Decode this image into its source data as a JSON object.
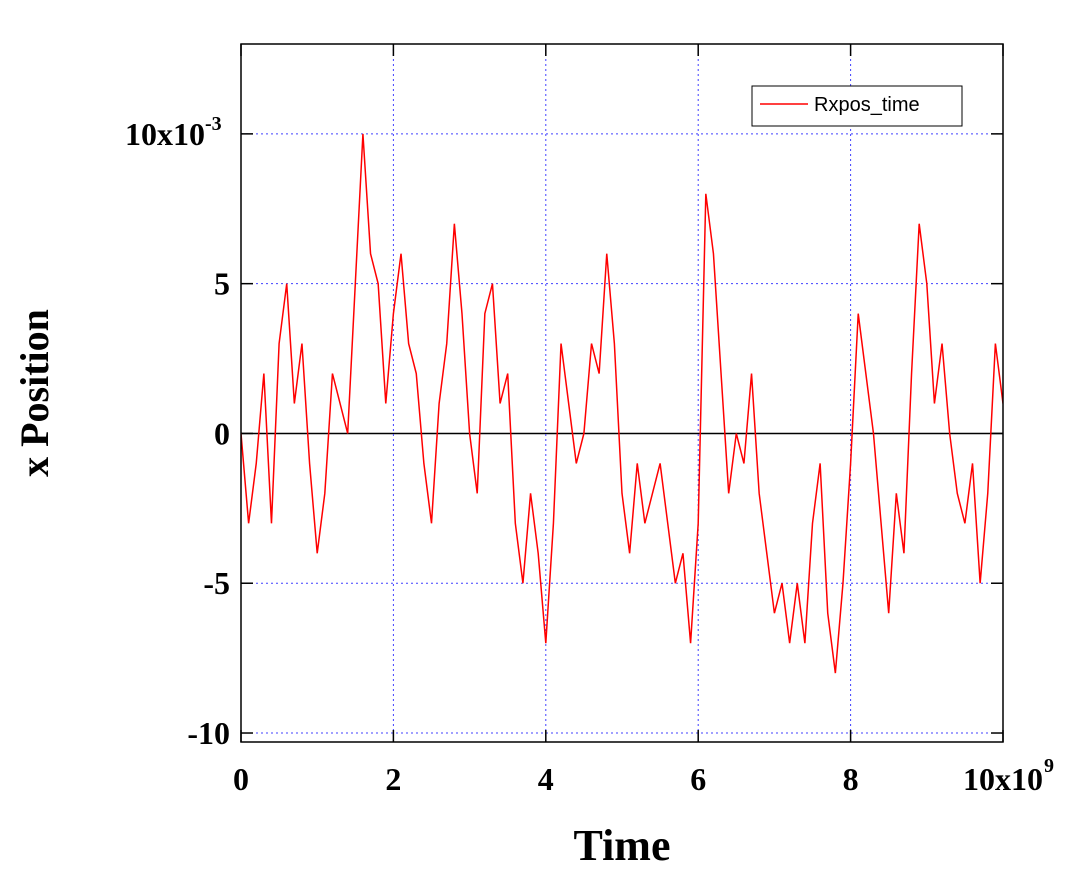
{
  "chart_data": {
    "type": "line",
    "xlabel": "Time",
    "ylabel": "x Position",
    "x": [
      0,
      100000000.0,
      200000000.0,
      300000000.0,
      400000000.0,
      500000000.0,
      600000000.0,
      700000000.0,
      800000000.0,
      900000000.0,
      1000000000.0,
      1100000000.0,
      1200000000.0,
      1300000000.0,
      1400000000.0,
      1500000000.0,
      1600000000.0,
      1700000000.0,
      1800000000.0,
      1900000000.0,
      2000000000.0,
      2100000000.0,
      2200000000.0,
      2300000000.0,
      2400000000.0,
      2500000000.0,
      2600000000.0,
      2700000000.0,
      2800000000.0,
      2900000000.0,
      3000000000.0,
      3100000000.0,
      3200000000.0,
      3300000000.0,
      3400000000.0,
      3500000000.0,
      3600000000.0,
      3700000000.0,
      3800000000.0,
      3900000000.0,
      4000000000.0,
      4100000000.0,
      4200000000.0,
      4300000000.0,
      4400000000.0,
      4500000000.0,
      4600000000.0,
      4700000000.0,
      4800000000.0,
      4900000000.0,
      5000000000.0,
      5100000000.0,
      5200000000.0,
      5300000000.0,
      5400000000.0,
      5500000000.0,
      5600000000.0,
      5700000000.0,
      5800000000.0,
      5900000000.0,
      6000000000.0,
      6100000000.0,
      6200000000.0,
      6300000000.0,
      6400000000.0,
      6500000000.0,
      6600000000.0,
      6700000000.0,
      6800000000.0,
      6900000000.0,
      7000000000.0,
      7100000000.0,
      7200000000.0,
      7300000000.0,
      7400000000.0,
      7500000000.0,
      7600000000.0,
      7700000000.0,
      7800000000.0,
      7900000000.0,
      8000000000.0,
      8100000000.0,
      8200000000.0,
      8300000000.0,
      8400000000.0,
      8500000000.0,
      8600000000.0,
      8700000000.0,
      8800000000.0,
      8900000000.0,
      9000000000.0,
      9100000000.0,
      9200000000.0,
      9300000000.0,
      9400000000.0,
      9500000000.0,
      9600000000.0,
      9700000000.0,
      9800000000.0,
      9900000000.0,
      10000000000.0
    ],
    "series": [
      {
        "name": "Rxpos_time",
        "color": "#ff0000",
        "values": [
          0,
          -0.003,
          -0.001,
          0.002,
          -0.003,
          0.003,
          0.005,
          0.001,
          0.003,
          -0.001,
          -0.004,
          -0.002,
          0.002,
          0.001,
          0,
          0.005,
          0.01,
          0.006,
          0.005,
          0.001,
          0.004,
          0.006,
          0.003,
          0.002,
          -0.001,
          -0.003,
          0.001,
          0.003,
          0.007,
          0.004,
          0,
          -0.002,
          0.004,
          0.005,
          0.001,
          0.002,
          -0.003,
          -0.005,
          -0.002,
          -0.004,
          -0.007,
          -0.003,
          0.003,
          0.001,
          -0.001,
          0,
          0.003,
          0.002,
          0.006,
          0.003,
          -0.002,
          -0.004,
          -0.001,
          -0.003,
          -0.002,
          -0.001,
          -0.003,
          -0.005,
          -0.004,
          -0.007,
          -0.003,
          0.008,
          0.006,
          0.002,
          -0.002,
          0,
          -0.001,
          0.002,
          -0.002,
          -0.004,
          -0.006,
          -0.005,
          -0.007,
          -0.005,
          -0.007,
          -0.003,
          -0.001,
          -0.006,
          -0.008,
          -0.005,
          -0.001,
          0.004,
          0.002,
          0,
          -0.003,
          -0.006,
          -0.002,
          -0.004,
          0.002,
          0.007,
          0.005,
          0.001,
          0.003,
          0,
          -0.002,
          -0.003,
          -0.001,
          -0.005,
          -0.002,
          0.003,
          0.001
        ]
      }
    ],
    "xlim": [
      0,
      10000000000.0
    ],
    "xticks": [
      0,
      {
        "value": 2000000000.0,
        "label": "2"
      },
      {
        "value": 4000000000.0,
        "label": "4"
      },
      {
        "value": 6000000000.0,
        "label": "6"
      },
      {
        "value": 8000000000.0,
        "label": "8"
      },
      {
        "value": 10000000000.0,
        "label": "10x10"
      }
    ],
    "xticks_exponent": "9",
    "ylim": [
      -0.0103,
      0.013
    ],
    "yticks": [
      {
        "value": -0.01,
        "label": "-10"
      },
      {
        "value": -0.005,
        "label": "-5"
      },
      0,
      {
        "value": 0.005,
        "label": "5"
      },
      {
        "value": 0.01,
        "label": "10x10"
      }
    ],
    "yticks_exponent": "-3",
    "grid": true,
    "legend": "top-right"
  }
}
